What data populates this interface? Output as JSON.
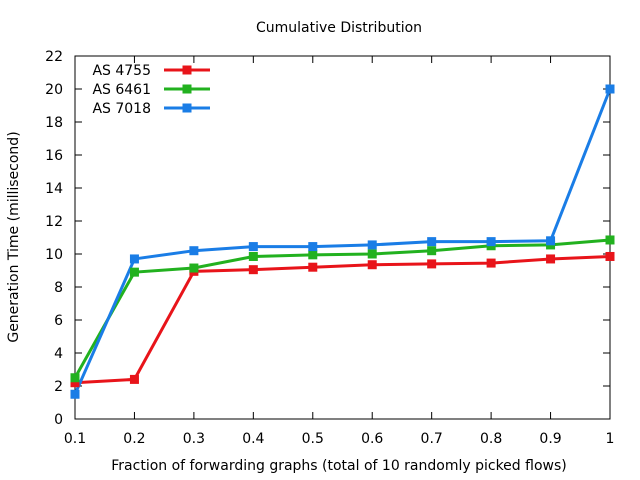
{
  "chart_data": {
    "type": "line",
    "title": "Cumulative Distribution",
    "xlabel": "Fraction of forwarding graphs (total of 10 randomly picked flows)",
    "ylabel": "Generation Time (millisecond)",
    "x": [
      0.1,
      0.2,
      0.3,
      0.4,
      0.5,
      0.6,
      0.7,
      0.8,
      0.9,
      1
    ],
    "x_tick_labels": [
      "0.1",
      "0.2",
      "0.3",
      "0.4",
      "0.5",
      "0.6",
      "0.7",
      "0.8",
      "0.9",
      "1"
    ],
    "y_ticks": [
      0,
      2,
      4,
      6,
      8,
      10,
      12,
      14,
      16,
      18,
      20,
      22
    ],
    "xlim": [
      0.1,
      1
    ],
    "ylim": [
      0,
      22
    ],
    "grid": false,
    "legend_position": "top-left",
    "series": [
      {
        "name": "AS 4755",
        "color": "#e8141a",
        "values": [
          2.2,
          2.4,
          8.95,
          9.05,
          9.2,
          9.35,
          9.4,
          9.45,
          9.7,
          9.85
        ]
      },
      {
        "name": "AS 6461",
        "color": "#22b11f",
        "values": [
          2.5,
          8.9,
          9.15,
          9.85,
          9.95,
          10.0,
          10.2,
          10.5,
          10.55,
          10.85
        ]
      },
      {
        "name": "AS 7018",
        "color": "#1a7de6",
        "values": [
          1.5,
          9.7,
          10.2,
          10.45,
          10.45,
          10.55,
          10.75,
          10.75,
          10.8,
          20.0
        ]
      }
    ]
  }
}
